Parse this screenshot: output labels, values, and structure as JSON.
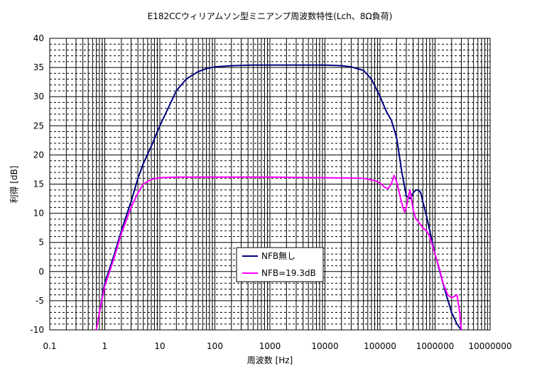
{
  "chart_data": {
    "type": "line",
    "title": "E182CCウィリアムソン型ミニアンプ周波数特性(Lch、8Ω負荷)",
    "xlabel": "周波数 [Hz]",
    "ylabel": "利得 [dB]",
    "x_scale": "log",
    "xlim": [
      0.1,
      10000000
    ],
    "ylim": [
      -10,
      40
    ],
    "x_ticks": [
      "0.1",
      "1",
      "10",
      "100",
      "1000",
      "10000",
      "100000",
      "1000000",
      "10000000"
    ],
    "y_ticks": [
      "-10",
      "-5",
      "0",
      "5",
      "10",
      "15",
      "20",
      "25",
      "30",
      "35",
      "40"
    ],
    "grid": true,
    "legend_position": "bottom-center",
    "series": [
      {
        "name": "NFB無し",
        "color": "#000080",
        "points": [
          [
            0.7,
            -10
          ],
          [
            0.8,
            -7
          ],
          [
            1,
            -2
          ],
          [
            1.5,
            3
          ],
          [
            2,
            7
          ],
          [
            3,
            12
          ],
          [
            4,
            16
          ],
          [
            5,
            18.5
          ],
          [
            7,
            21.5
          ],
          [
            10,
            25
          ],
          [
            15,
            28.5
          ],
          [
            20,
            31
          ],
          [
            30,
            33
          ],
          [
            50,
            34.3
          ],
          [
            70,
            34.8
          ],
          [
            100,
            35.1
          ],
          [
            200,
            35.3
          ],
          [
            500,
            35.4
          ],
          [
            1000,
            35.4
          ],
          [
            5000,
            35.4
          ],
          [
            10000,
            35.4
          ],
          [
            20000,
            35.3
          ],
          [
            30000,
            35.1
          ],
          [
            50000,
            34.5
          ],
          [
            70000,
            33
          ],
          [
            100000,
            30
          ],
          [
            130000,
            27.5
          ],
          [
            160000,
            26
          ],
          [
            200000,
            23
          ],
          [
            250000,
            17
          ],
          [
            300000,
            13
          ],
          [
            350000,
            12.5
          ],
          [
            400000,
            13.5
          ],
          [
            450000,
            14
          ],
          [
            500000,
            14
          ],
          [
            550000,
            13.5
          ],
          [
            600000,
            12
          ],
          [
            700000,
            9.5
          ],
          [
            800000,
            7
          ],
          [
            1000000,
            3
          ],
          [
            1300000,
            -1
          ],
          [
            1600000,
            -4
          ],
          [
            2000000,
            -7
          ],
          [
            2500000,
            -9
          ],
          [
            3000000,
            -10
          ]
        ]
      },
      {
        "name": "NFB=19.3dB",
        "color": "#ff00ff",
        "points": [
          [
            0.7,
            -10
          ],
          [
            0.8,
            -7
          ],
          [
            1,
            -2.5
          ],
          [
            1.5,
            2.5
          ],
          [
            2,
            6.5
          ],
          [
            3,
            11
          ],
          [
            4,
            13.5
          ],
          [
            5,
            15
          ],
          [
            7,
            15.8
          ],
          [
            10,
            16.1
          ],
          [
            20,
            16.2
          ],
          [
            50,
            16.2
          ],
          [
            100,
            16.2
          ],
          [
            1000,
            16.2
          ],
          [
            10000,
            16.1
          ],
          [
            50000,
            16
          ],
          [
            80000,
            15.6
          ],
          [
            100000,
            15.2
          ],
          [
            120000,
            14.5
          ],
          [
            140000,
            14.2
          ],
          [
            160000,
            15
          ],
          [
            180000,
            16.5
          ],
          [
            200000,
            15.5
          ],
          [
            230000,
            13
          ],
          [
            260000,
            11
          ],
          [
            280000,
            10.2
          ],
          [
            300000,
            11
          ],
          [
            330000,
            13
          ],
          [
            350000,
            14
          ],
          [
            380000,
            12
          ],
          [
            400000,
            10.5
          ],
          [
            450000,
            9
          ],
          [
            500000,
            8.5
          ],
          [
            600000,
            7.5
          ],
          [
            700000,
            7
          ],
          [
            800000,
            6
          ],
          [
            1000000,
            3
          ],
          [
            1200000,
            0.5
          ],
          [
            1400000,
            -2
          ],
          [
            1700000,
            -4
          ],
          [
            2000000,
            -4.5
          ],
          [
            2500000,
            -4
          ],
          [
            2800000,
            -7
          ],
          [
            3000000,
            -10
          ]
        ]
      }
    ]
  }
}
